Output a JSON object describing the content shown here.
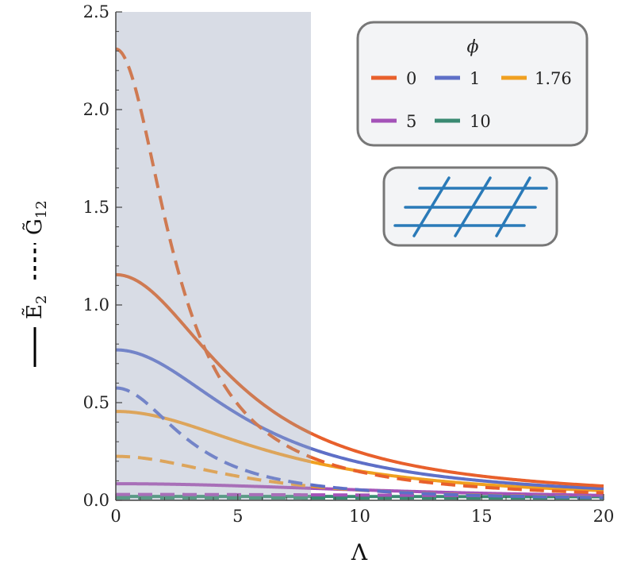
{
  "chart_data": {
    "type": "line",
    "xlabel": "Λ",
    "ylabel_solid": "Ẽ",
    "ylabel_solid_sub": "2",
    "ylabel_dashed": "G̃",
    "ylabel_dashed_sub": "12",
    "xlim": [
      0,
      20
    ],
    "ylim": [
      0,
      2.5
    ],
    "x_ticks": [
      0,
      5,
      10,
      15,
      20
    ],
    "x_tick_labels": [
      "0",
      "5",
      "10",
      "15",
      "20"
    ],
    "y_ticks": [
      0,
      0.5,
      1.0,
      1.5,
      2.0,
      2.5
    ],
    "y_tick_labels": [
      "0.0",
      "0.5",
      "1.0",
      "1.5",
      "2.0",
      "2.5"
    ],
    "shaded_region_x": [
      0,
      8
    ],
    "shaded_color": "#d8dce5",
    "legend_title": "ϕ",
    "legend_placement": "top-right",
    "series": [
      {
        "name": "0",
        "color": "#e8602c",
        "fade_color": "#cf7a52",
        "solid": {
          "amplitude": 1.155,
          "width": 5.2
        },
        "dashed": {
          "amplitude": 2.31,
          "width": 2.6
        }
      },
      {
        "name": "1",
        "color": "#5e6fc7",
        "fade_color": "#7384c8",
        "solid": {
          "amplitude": 0.77,
          "width": 5.8
        },
        "dashed": {
          "amplitude": 0.575,
          "width": 3.2
        }
      },
      {
        "name": "1.76",
        "color": "#f0a020",
        "fade_color": "#dda55b",
        "solid": {
          "amplitude": 0.455,
          "width": 7.0
        },
        "dashed": {
          "amplitude": 0.225,
          "width": 5.5
        }
      },
      {
        "name": "5",
        "color": "#a452b8",
        "fade_color": "#a86fb8",
        "solid": {
          "amplitude": 0.085,
          "width": 13.0
        },
        "dashed": {
          "amplitude": 0.03,
          "width": 30.0
        }
      },
      {
        "name": "10",
        "color": "#3a8a72",
        "fade_color": "#5a9a86",
        "solid": {
          "amplitude": 0.02,
          "width": 60.0
        },
        "dashed": {
          "amplitude": 0.012,
          "width": 100.0
        }
      }
    ],
    "inset_icon": "tilted-lattice-icon",
    "inset_color": "#2a7ab8"
  }
}
